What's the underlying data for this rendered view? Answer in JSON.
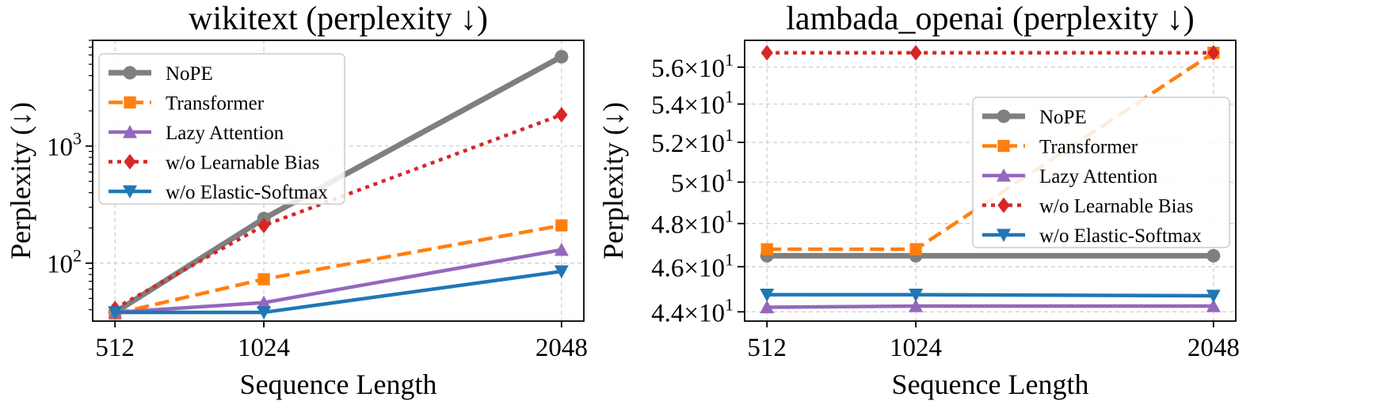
{
  "chart_data": [
    {
      "type": "line",
      "title": "wikitext (perplexity ↓)",
      "xlabel": "Sequence Length",
      "ylabel": "Perplexity (↓)",
      "yscale": "log",
      "x": [
        512,
        1024,
        2048
      ],
      "xticks": [
        "512",
        "1024",
        "2048"
      ],
      "ylim": [
        32,
        8000
      ],
      "yticks": [
        {
          "value": 100,
          "base": "10",
          "exp": "2"
        },
        {
          "value": 1000,
          "base": "10",
          "exp": "3"
        }
      ],
      "legend": "top-left",
      "series": [
        {
          "name": "NoPE",
          "values": [
            38,
            240,
            5800
          ],
          "color": "#7f7f7f",
          "dash": "solid",
          "marker": "circle"
        },
        {
          "name": "Transformer",
          "values": [
            37,
            73,
            210
          ],
          "color": "#ff7f0e",
          "dash": "dashed",
          "marker": "square"
        },
        {
          "name": "Lazy Attention",
          "values": [
            38,
            46,
            130
          ],
          "color": "#9467bd",
          "dash": "solid",
          "marker": "triangle-up"
        },
        {
          "name": "w/o Learnable Bias",
          "values": [
            41,
            210,
            1850
          ],
          "color": "#d62728",
          "dash": "dotted",
          "marker": "diamond"
        },
        {
          "name": "w/o Elastic-Softmax",
          "values": [
            38,
            38,
            85
          ],
          "color": "#1f77b4",
          "dash": "solid",
          "marker": "triangle-down"
        }
      ]
    },
    {
      "type": "line",
      "title": "lambada_openai (perplexity ↓)",
      "xlabel": "Sequence Length",
      "ylabel": "Perplexity (↓)",
      "yscale": "log",
      "x": [
        512,
        1024,
        2048
      ],
      "xticks": [
        "512",
        "1024",
        "2048"
      ],
      "ylim": [
        43.6,
        57.5
      ],
      "yticks": [
        {
          "value": 44,
          "base": "4.4×10",
          "exp": "1"
        },
        {
          "value": 46,
          "base": "4.6×10",
          "exp": "1"
        },
        {
          "value": 48,
          "base": "4.8×10",
          "exp": "1"
        },
        {
          "value": 50,
          "base": "5×10",
          "exp": "1"
        },
        {
          "value": 52,
          "base": "5.2×10",
          "exp": "1"
        },
        {
          "value": 54,
          "base": "5.4×10",
          "exp": "1"
        },
        {
          "value": 56,
          "base": "5.6×10",
          "exp": "1"
        }
      ],
      "legend": "center-right",
      "series": [
        {
          "name": "NoPE",
          "values": [
            46.5,
            46.5,
            46.5
          ],
          "color": "#7f7f7f",
          "dash": "solid",
          "marker": "circle"
        },
        {
          "name": "Transformer",
          "values": [
            46.8,
            46.8,
            56.8
          ],
          "color": "#ff7f0e",
          "dash": "dashed",
          "marker": "square"
        },
        {
          "name": "Lazy Attention",
          "values": [
            44.2,
            44.25,
            44.25
          ],
          "color": "#9467bd",
          "dash": "solid",
          "marker": "triangle-up"
        },
        {
          "name": "w/o Learnable Bias",
          "values": [
            56.8,
            56.8,
            56.8
          ],
          "color": "#d62728",
          "dash": "dotted",
          "marker": "diamond"
        },
        {
          "name": "w/o Elastic-Softmax",
          "values": [
            44.75,
            44.75,
            44.7
          ],
          "color": "#1f77b4",
          "dash": "solid",
          "marker": "triangle-down"
        }
      ]
    }
  ]
}
